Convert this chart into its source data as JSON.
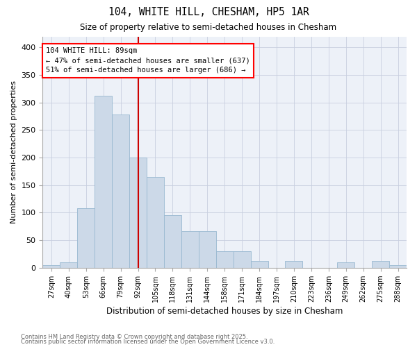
{
  "title1": "104, WHITE HILL, CHESHAM, HP5 1AR",
  "title2": "Size of property relative to semi-detached houses in Chesham",
  "xlabel": "Distribution of semi-detached houses by size in Chesham",
  "ylabel": "Number of semi-detached properties",
  "categories": [
    "27sqm",
    "40sqm",
    "53sqm",
    "66sqm",
    "79sqm",
    "92sqm",
    "105sqm",
    "118sqm",
    "131sqm",
    "144sqm",
    "158sqm",
    "171sqm",
    "184sqm",
    "197sqm",
    "210sqm",
    "223sqm",
    "236sqm",
    "249sqm",
    "262sqm",
    "275sqm",
    "288sqm"
  ],
  "values": [
    5,
    10,
    108,
    312,
    278,
    200,
    165,
    96,
    67,
    67,
    30,
    30,
    12,
    0,
    12,
    0,
    0,
    10,
    0,
    12,
    5
  ],
  "bar_color": "#ccd9e8",
  "bar_edge_color": "#99b8d0",
  "vline_x_idx": 5,
  "vline_color": "#cc0000",
  "annotation_title": "104 WHITE HILL: 89sqm",
  "annotation_line1": "← 47% of semi-detached houses are smaller (637)",
  "annotation_line2": "51% of semi-detached houses are larger (686) →",
  "footer1": "Contains HM Land Registry data © Crown copyright and database right 2025.",
  "footer2": "Contains public sector information licensed under the Open Government Licence v3.0.",
  "ylim": [
    0,
    420
  ],
  "yticks": [
    0,
    50,
    100,
    150,
    200,
    250,
    300,
    350,
    400
  ],
  "bg_color": "#edf1f8"
}
